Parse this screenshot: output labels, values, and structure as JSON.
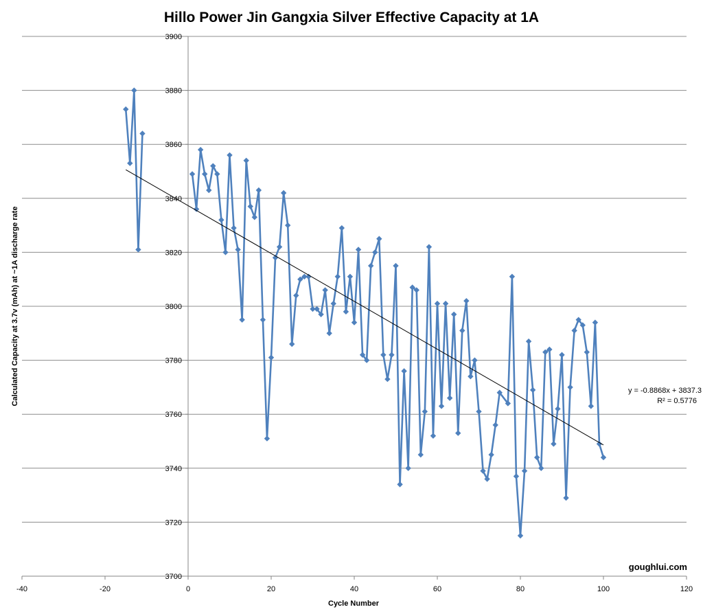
{
  "chart_data": {
    "type": "scatter",
    "title": "Hillo Power Jin Gangxia Silver Effective Capacity at 1A",
    "xlabel": "Cycle Number",
    "ylabel": "Calculated Capacity at 3.7v (mAh) at ~1A discharge rate",
    "xlim": [
      -40,
      120
    ],
    "ylim": [
      3700,
      3900
    ],
    "x_ticks": [
      "-40",
      "-20",
      "0",
      "20",
      "40",
      "60",
      "80",
      "100",
      "120"
    ],
    "y_ticks": [
      "3700",
      "3720",
      "3740",
      "3760",
      "3780",
      "3800",
      "3820",
      "3840",
      "3860",
      "3880",
      "3900"
    ],
    "grid": "horizontal",
    "series": [
      {
        "color": "#4F81BD",
        "marker": "diamond",
        "segments": [
          [
            [
              -15,
              3873
            ],
            [
              -14,
              3853
            ],
            [
              -13,
              3880
            ],
            [
              -12,
              3821
            ],
            [
              -11,
              3864
            ]
          ],
          [
            [
              1,
              3849
            ],
            [
              2,
              3836
            ],
            [
              3,
              3858
            ],
            [
              4,
              3849
            ],
            [
              5,
              3843
            ],
            [
              6,
              3852
            ],
            [
              7,
              3849
            ],
            [
              8,
              3832
            ],
            [
              9,
              3820
            ],
            [
              10,
              3856
            ],
            [
              11,
              3829
            ],
            [
              12,
              3821
            ],
            [
              13,
              3795
            ],
            [
              14,
              3854
            ],
            [
              15,
              3837
            ],
            [
              16,
              3833
            ],
            [
              17,
              3843
            ],
            [
              18,
              3795
            ],
            [
              19,
              3751
            ],
            [
              20,
              3781
            ],
            [
              21,
              3818
            ],
            [
              22,
              3822
            ],
            [
              23,
              3842
            ],
            [
              24,
              3830
            ],
            [
              25,
              3786
            ],
            [
              26,
              3804
            ],
            [
              27,
              3810
            ],
            [
              28,
              3811
            ],
            [
              29,
              3811
            ],
            [
              30,
              3799
            ],
            [
              31,
              3799
            ],
            [
              32,
              3797
            ],
            [
              33,
              3806
            ],
            [
              34,
              3790
            ],
            [
              35,
              3801
            ],
            [
              36,
              3811
            ],
            [
              37,
              3829
            ],
            [
              38,
              3798
            ],
            [
              39,
              3811
            ],
            [
              40,
              3794
            ],
            [
              41,
              3821
            ],
            [
              42,
              3782
            ],
            [
              43,
              3780
            ],
            [
              44,
              3815
            ],
            [
              45,
              3820
            ],
            [
              46,
              3825
            ],
            [
              47,
              3782
            ],
            [
              48,
              3773
            ],
            [
              49,
              3782
            ],
            [
              50,
              3815
            ],
            [
              51,
              3734
            ],
            [
              52,
              3776
            ],
            [
              53,
              3740
            ],
            [
              54,
              3807
            ],
            [
              55,
              3806
            ],
            [
              56,
              3745
            ],
            [
              57,
              3761
            ],
            [
              58,
              3822
            ],
            [
              59,
              3752
            ],
            [
              60,
              3801
            ],
            [
              61,
              3763
            ],
            [
              62,
              3801
            ],
            [
              63,
              3766
            ],
            [
              64,
              3797
            ],
            [
              65,
              3753
            ],
            [
              66,
              3791
            ],
            [
              67,
              3802
            ],
            [
              68,
              3774
            ],
            [
              69,
              3780
            ],
            [
              70,
              3761
            ],
            [
              71,
              3739
            ],
            [
              72,
              3736
            ],
            [
              73,
              3745
            ],
            [
              74,
              3756
            ],
            [
              75,
              3768
            ],
            [
              77,
              3764
            ],
            [
              78,
              3811
            ],
            [
              79,
              3737
            ],
            [
              80,
              3715
            ],
            [
              81,
              3739
            ],
            [
              82,
              3787
            ],
            [
              83,
              3769
            ],
            [
              84,
              3744
            ],
            [
              85,
              3740
            ],
            [
              86,
              3783
            ],
            [
              87,
              3784
            ],
            [
              88,
              3749
            ],
            [
              89,
              3762
            ],
            [
              90,
              3782
            ],
            [
              91,
              3729
            ],
            [
              92,
              3770
            ],
            [
              93,
              3791
            ],
            [
              94,
              3795
            ],
            [
              95,
              3793
            ],
            [
              96,
              3783
            ],
            [
              97,
              3763
            ],
            [
              98,
              3794
            ],
            [
              99,
              3749
            ],
            [
              100,
              3744
            ]
          ]
        ]
      }
    ],
    "trendline": {
      "type": "linear",
      "slope": -0.8868,
      "intercept": 3837.3,
      "x_range": [
        -15,
        100
      ],
      "equation": "y = -0.8868x + 3837.3",
      "r2": "R² = 0.5776",
      "color": "#000000"
    },
    "watermark": "goughlui.com",
    "colors": {
      "series": "#4F81BD",
      "gridline": "#8C8C8C",
      "axis": "#868686",
      "trendline": "#000000"
    }
  }
}
